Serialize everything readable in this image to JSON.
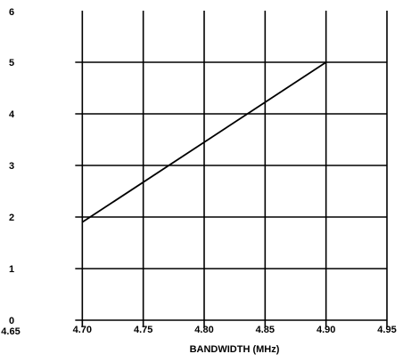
{
  "chart_data": {
    "type": "line",
    "title": "",
    "xlabel": "BANDWIDTH (MHz)",
    "ylabel": "",
    "xlim": [
      4.65,
      4.95
    ],
    "ylim": [
      0,
      6
    ],
    "x_ticks": [
      "4.65",
      "4.70",
      "4.75",
      "4.80",
      "4.85",
      "4.90",
      "4.95"
    ],
    "y_ticks": [
      "0",
      "1",
      "2",
      "3",
      "4",
      "5",
      "6"
    ],
    "grid": true,
    "series": [
      {
        "x": [
          4.7,
          4.9
        ],
        "y": [
          1.9,
          5.0
        ]
      }
    ]
  },
  "colors": {
    "grid": "#000000",
    "line": "#000000",
    "background": "#ffffff"
  }
}
